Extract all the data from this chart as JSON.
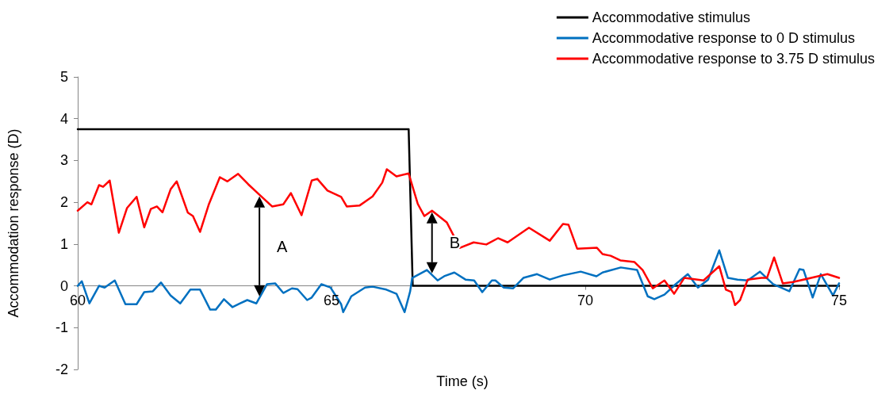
{
  "chart_data": {
    "type": "line",
    "xlabel": "Time (s)",
    "ylabel": "Accommodation response (D)",
    "xlim": [
      60,
      75
    ],
    "xticks": [
      60,
      65,
      70,
      75
    ],
    "ylim": [
      -2,
      5
    ],
    "yticks": [
      -2,
      -1,
      0,
      1,
      2,
      3,
      4,
      5
    ],
    "grid": false,
    "legend": "top right",
    "marker": "none",
    "line_style": "solid",
    "series": [
      {
        "name": "Accommodative stimulus",
        "color": "#000000",
        "x": [
          60,
          66.52,
          66.6,
          75
        ],
        "values": [
          3.75,
          3.75,
          0,
          0
        ]
      },
      {
        "name": "Accommodative response to 0 D stimulus",
        "color": "#0070c0",
        "x": [
          60,
          60.08,
          60.23,
          60.42,
          60.53,
          60.73,
          60.94,
          61.16,
          61.31,
          61.48,
          61.64,
          61.83,
          62.02,
          62.22,
          62.41,
          62.61,
          62.72,
          62.88,
          63.05,
          63.2,
          63.34,
          63.52,
          63.73,
          63.89,
          64.05,
          64.22,
          64.33,
          64.52,
          64.61,
          64.8,
          64.98,
          65.19,
          65.23,
          65.39,
          65.66,
          65.81,
          66.08,
          66.28,
          66.44,
          66.55,
          66.59,
          66.88,
          67.09,
          67.22,
          67.42,
          67.64,
          67.81,
          67.97,
          68.16,
          68.23,
          68.39,
          68.58,
          68.78,
          69.05,
          69.3,
          69.56,
          69.91,
          70.22,
          70.34,
          70.7,
          71.02,
          71.23,
          71.36,
          71.56,
          71.78,
          72.02,
          72.22,
          72.42,
          72.64,
          72.81,
          73.0,
          73.2,
          73.44,
          73.7,
          74.02,
          74.22,
          74.3,
          74.48,
          74.64,
          74.88,
          75
        ],
        "values": [
          0,
          0.11,
          -0.42,
          0,
          -0.04,
          0.13,
          -0.44,
          -0.44,
          -0.15,
          -0.13,
          0.08,
          -0.23,
          -0.42,
          -0.09,
          -0.09,
          -0.57,
          -0.57,
          -0.32,
          -0.51,
          -0.42,
          -0.34,
          -0.42,
          0.04,
          0.06,
          -0.17,
          -0.06,
          -0.08,
          -0.34,
          -0.28,
          0.04,
          -0.04,
          -0.44,
          -0.63,
          -0.25,
          -0.04,
          -0.02,
          -0.09,
          -0.19,
          -0.63,
          -0.13,
          0.19,
          0.38,
          0.13,
          0.23,
          0.32,
          0.15,
          0.13,
          -0.15,
          0.13,
          0.13,
          -0.04,
          -0.06,
          0.19,
          0.28,
          0.15,
          0.25,
          0.34,
          0.23,
          0.32,
          0.44,
          0.38,
          -0.25,
          -0.32,
          -0.21,
          0.04,
          0.28,
          -0.04,
          0.15,
          0.85,
          0.19,
          0.15,
          0.13,
          0.34,
          0.04,
          -0.13,
          0.4,
          0.38,
          -0.28,
          0.28,
          -0.23,
          0.06
        ]
      },
      {
        "name": "Accommodative response to 3.75 D stimulus",
        "color": "#ff0000",
        "x": [
          60,
          60.19,
          60.27,
          60.42,
          60.5,
          60.63,
          60.81,
          60.97,
          61.16,
          61.31,
          61.44,
          61.56,
          61.67,
          61.83,
          61.95,
          62.17,
          62.27,
          62.41,
          62.58,
          62.8,
          62.95,
          63.16,
          63.36,
          63.58,
          63.83,
          64.05,
          64.2,
          64.41,
          64.61,
          64.72,
          64.92,
          65.19,
          65.3,
          65.55,
          65.81,
          66.0,
          66.09,
          66.28,
          66.52,
          66.7,
          66.83,
          66.98,
          67.27,
          67.53,
          67.8,
          68.05,
          68.28,
          68.47,
          68.89,
          69.3,
          69.56,
          69.67,
          69.84,
          70.23,
          70.34,
          70.5,
          70.69,
          70.97,
          71.13,
          71.33,
          71.56,
          71.75,
          71.95,
          72.33,
          72.64,
          72.77,
          72.88,
          72.95,
          73.05,
          73.2,
          73.47,
          73.58,
          73.72,
          73.89,
          74.09,
          74.45,
          74.77,
          75
        ],
        "values": [
          1.8,
          2.0,
          1.95,
          2.41,
          2.37,
          2.52,
          1.27,
          1.86,
          2.13,
          1.4,
          1.84,
          1.9,
          1.76,
          2.31,
          2.5,
          1.75,
          1.67,
          1.29,
          1.94,
          2.6,
          2.5,
          2.68,
          2.43,
          2.18,
          1.9,
          1.95,
          2.22,
          1.69,
          2.52,
          2.56,
          2.28,
          2.13,
          1.9,
          1.92,
          2.14,
          2.47,
          2.79,
          2.62,
          2.69,
          1.96,
          1.67,
          1.8,
          1.52,
          0.91,
          1.04,
          0.99,
          1.14,
          1.04,
          1.39,
          1.08,
          1.48,
          1.46,
          0.89,
          0.91,
          0.76,
          0.72,
          0.61,
          0.57,
          0.38,
          -0.06,
          0.13,
          -0.19,
          0.19,
          0.13,
          0.47,
          -0.09,
          -0.15,
          -0.46,
          -0.34,
          0.15,
          0.19,
          0.19,
          0.68,
          0.06,
          0.09,
          0.19,
          0.28,
          0.19
        ]
      }
    ],
    "annotations": [
      {
        "text": "A",
        "x": 63.58,
        "y": 2.18
      },
      {
        "text": "B",
        "x": 66.98,
        "y": 1.8
      }
    ]
  }
}
